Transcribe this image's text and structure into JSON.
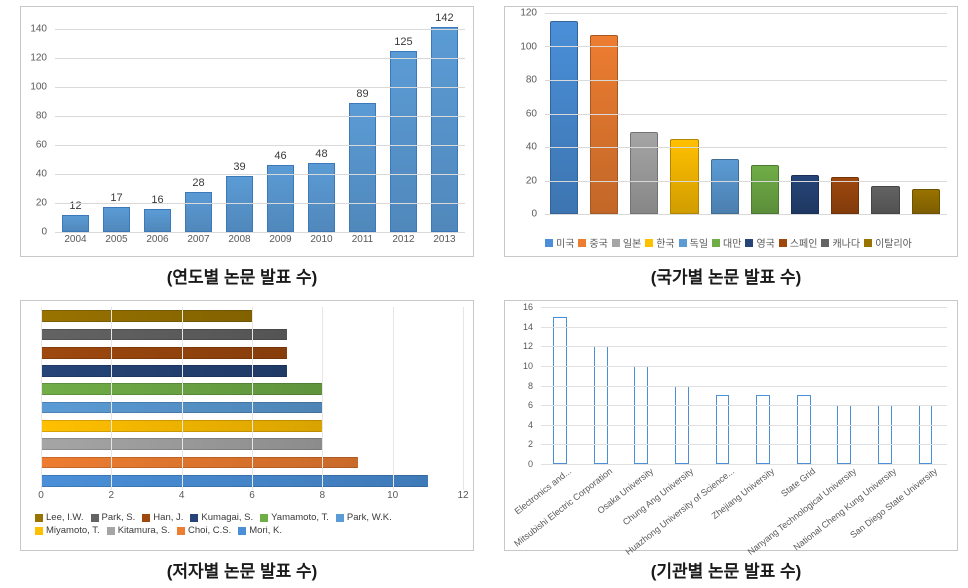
{
  "chart_year": {
    "type": "bar",
    "caption": "(연도별 논문 발표 수)",
    "categories": [
      "2004",
      "2005",
      "2006",
      "2007",
      "2008",
      "2009",
      "2010",
      "2011",
      "2012",
      "2013"
    ],
    "values": [
      12,
      17,
      16,
      28,
      39,
      46,
      48,
      89,
      125,
      142
    ],
    "ylim": [
      0,
      150
    ],
    "ytick_step": 20,
    "bar_color": "#5b9bd5",
    "bar_border": "#3b79ba",
    "value_label_fontsize": 11,
    "axis_fontsize": 10,
    "grid_color": "#d9d9d9",
    "background_color": "#ffffff"
  },
  "chart_country": {
    "type": "bar",
    "caption": "(국가별 논문 발표 수)",
    "categories": [
      "미국",
      "중국",
      "일본",
      "한국",
      "독일",
      "대만",
      "영국",
      "스페인",
      "캐나다",
      "이탈리아"
    ],
    "values": [
      115,
      107,
      49,
      45,
      33,
      29,
      23,
      22,
      17,
      15
    ],
    "colors": [
      "#4a8fd8",
      "#ed7d31",
      "#a5a5a5",
      "#ffc000",
      "#5b9bd5",
      "#70ad47",
      "#264478",
      "#9e480e",
      "#636363",
      "#997300"
    ],
    "ylim": [
      0,
      120
    ],
    "ytick_step": 20,
    "grid_color": "#d9d9d9",
    "legend_fontsize": 10,
    "background_color": "#ffffff",
    "bar_gradient_dark_factor": 0.82
  },
  "chart_author": {
    "type": "bar_horizontal",
    "caption": "(저자별 논문 발표 수)",
    "categories_top_to_bottom": [
      "Lee, I.W.",
      "Park, S.",
      "Han, J.",
      "Kumagai, S.",
      "Yamamoto, T.",
      "Park, W.K.",
      "Miyamoto, T.",
      "Kitamura, S.",
      "Choi, C.S.",
      "Mori, K."
    ],
    "values_top_to_bottom": [
      6,
      7,
      7,
      7,
      8,
      8,
      8,
      8,
      9,
      11
    ],
    "colors_top_to_bottom": [
      "#997300",
      "#636363",
      "#9e480e",
      "#264478",
      "#70ad47",
      "#5b9bd5",
      "#ffc000",
      "#a5a5a5",
      "#ed7d31",
      "#4a8fd8"
    ],
    "xlim": [
      0,
      12
    ],
    "xtick_step": 2,
    "grid_color": "#e6e6e6",
    "legend_fontsize": 9.5,
    "background_color": "#ffffff",
    "bar_height_ratio": 0.64
  },
  "chart_institution": {
    "type": "bar_outlined",
    "caption": "(기관별 논문 발표 수)",
    "categories": [
      "Electronics and...",
      "Mitsubishi Electric Corporation",
      "Osaka University",
      "Chung Ang University",
      "Huazhong University of Science...",
      "Zhejiang University",
      "State Grid",
      "Nanyang Technological University",
      "National Cheng Kung University",
      "San Diego State University"
    ],
    "values": [
      15,
      12,
      10,
      8,
      7,
      7,
      7,
      6,
      6,
      6
    ],
    "ylim": [
      0,
      16
    ],
    "ytick_step": 2,
    "bar_border_color": "#4a8fd8",
    "bar_fill_color": "#ffffff",
    "axis_fontsize": 9,
    "xlabel_rotation_deg": -38,
    "grid_color": "#e0e0e0",
    "background_color": "#ffffff"
  }
}
